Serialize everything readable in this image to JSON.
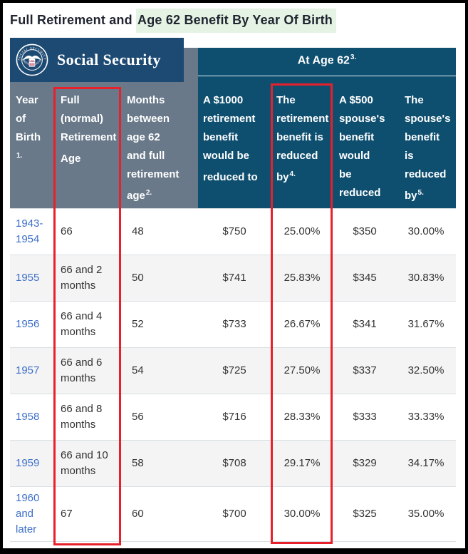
{
  "title": {
    "prefix": "Full Retirement and ",
    "highlight": "Age 62 Benefit By Year Of Birth"
  },
  "banner": {
    "wordmark": "Social Security",
    "seal": {
      "top_text": "SOCIAL SECURITY",
      "bottom_text": "ADMINISTRATION",
      "center_text": "USA"
    }
  },
  "table": {
    "group_header": {
      "label": "At Age 62",
      "footnote": "3."
    },
    "columns": [
      {
        "label": "Year\nof\nBirth\n",
        "footnote": "1."
      },
      {
        "label": "Full\n(normal)\nRetirement\nAge",
        "footnote": ""
      },
      {
        "label": "Months\nbetween\nage 62\nand full\nretirement\nage",
        "footnote": "2."
      },
      {
        "label": "A $1000\nretirement\nbenefit\nwould be\nreduced to",
        "footnote": ""
      },
      {
        "label": "The\nretirement\nbenefit is\nreduced\nby",
        "footnote": "4."
      },
      {
        "label": "A $500\nspouse's\nbenefit\nwould\nbe\nreduced\nto",
        "footnote": ""
      },
      {
        "label": "The\nspouse's\nbenefit\nis\nreduced\nby",
        "footnote": "5."
      }
    ],
    "rows": [
      [
        "1943-1954",
        "66",
        "48",
        "$750",
        "25.00%",
        "$350",
        "30.00%"
      ],
      [
        "1955",
        "66 and 2 months",
        "50",
        "$741",
        "25.83%",
        "$345",
        "30.83%"
      ],
      [
        "1956",
        "66 and 4 months",
        "52",
        "$733",
        "26.67%",
        "$341",
        "31.67%"
      ],
      [
        "1957",
        "66 and 6 months",
        "54",
        "$725",
        "27.50%",
        "$337",
        "32.50%"
      ],
      [
        "1958",
        "66 and 8 months",
        "56",
        "$716",
        "28.33%",
        "$333",
        "33.33%"
      ],
      [
        "1959",
        "66 and 10 months",
        "58",
        "$708",
        "29.17%",
        "$329",
        "34.17%"
      ],
      [
        "1960 and later",
        "67",
        "60",
        "$700",
        "30.00%",
        "$325",
        "35.00%"
      ]
    ]
  },
  "annotations": {
    "red_box_1": "full-retirement-age-column",
    "red_box_2": "retirement-benefit-reduction-column"
  },
  "colors": {
    "banner_navy": "#1d4a73",
    "header_blue": "#0e4f70",
    "header_gray": "#69798a",
    "row_stripe": "#f4f4f4",
    "link_blue": "#3d6fc9",
    "annotation_red": "#e8202b",
    "title_highlight": "#e4f3e3"
  }
}
